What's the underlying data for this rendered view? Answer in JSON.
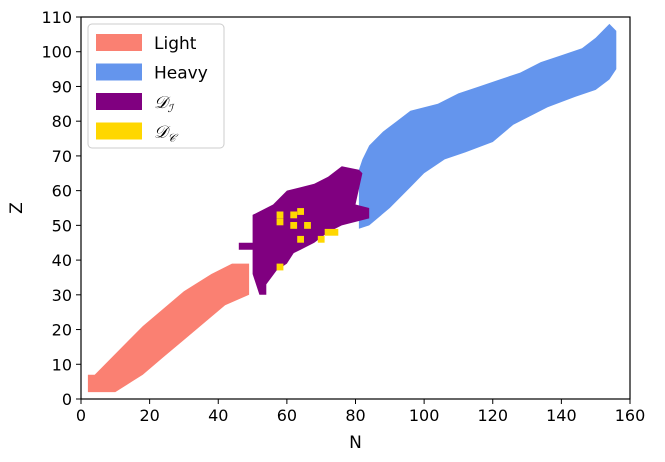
{
  "chart_data": {
    "type": "heatmap",
    "xlabel": "N",
    "ylabel": "Z",
    "xlim": [
      0,
      160
    ],
    "ylim": [
      0,
      110
    ],
    "xticks": [
      0,
      20,
      40,
      60,
      80,
      100,
      120,
      140,
      160
    ],
    "yticks": [
      0,
      10,
      20,
      30,
      40,
      50,
      60,
      70,
      80,
      90,
      100,
      110
    ],
    "grid": false,
    "legend_position": "top-left",
    "series": [
      {
        "name": "Light",
        "color": "#fa8072",
        "polygon": [
          [
            2,
            2
          ],
          [
            10,
            2
          ],
          [
            18,
            7
          ],
          [
            24,
            12
          ],
          [
            30,
            17
          ],
          [
            36,
            22
          ],
          [
            42,
            27
          ],
          [
            49,
            30
          ],
          [
            49,
            39
          ],
          [
            44,
            39
          ],
          [
            38,
            36
          ],
          [
            30,
            31
          ],
          [
            24,
            26
          ],
          [
            18,
            21
          ],
          [
            12,
            15
          ],
          [
            8,
            11
          ],
          [
            6,
            9
          ],
          [
            4,
            7
          ],
          [
            2,
            7
          ]
        ]
      },
      {
        "name": "Heavy",
        "color": "#6495ed",
        "polygon": [
          [
            81,
            49
          ],
          [
            84,
            50
          ],
          [
            90,
            55
          ],
          [
            96,
            61
          ],
          [
            100,
            65
          ],
          [
            106,
            69
          ],
          [
            112,
            71
          ],
          [
            120,
            74
          ],
          [
            126,
            79
          ],
          [
            132,
            82
          ],
          [
            136,
            84
          ],
          [
            144,
            87
          ],
          [
            150,
            89
          ],
          [
            154,
            92
          ],
          [
            156,
            95
          ],
          [
            156,
            106
          ],
          [
            154,
            108
          ],
          [
            150,
            104
          ],
          [
            146,
            101
          ],
          [
            140,
            99
          ],
          [
            134,
            97
          ],
          [
            128,
            94
          ],
          [
            122,
            92
          ],
          [
            116,
            90
          ],
          [
            110,
            88
          ],
          [
            104,
            85
          ],
          [
            96,
            83
          ],
          [
            92,
            80
          ],
          [
            88,
            77
          ],
          [
            84,
            73
          ],
          [
            82,
            69
          ],
          [
            81,
            66
          ]
        ]
      },
      {
        "name": "𝒟ℐ",
        "label_main": "𝒟",
        "label_sub": "ℐ",
        "color": "#800080",
        "polygon": [
          [
            46,
            43
          ],
          [
            50,
            43
          ],
          [
            50,
            36
          ],
          [
            52,
            30
          ],
          [
            54,
            30
          ],
          [
            54,
            33
          ],
          [
            57,
            37
          ],
          [
            60,
            39
          ],
          [
            62,
            42
          ],
          [
            64,
            43
          ],
          [
            68,
            45
          ],
          [
            72,
            48
          ],
          [
            76,
            50
          ],
          [
            80,
            51
          ],
          [
            84,
            52
          ],
          [
            84,
            55
          ],
          [
            80,
            56
          ],
          [
            82,
            65
          ],
          [
            81,
            66
          ],
          [
            76,
            67
          ],
          [
            72,
            64
          ],
          [
            68,
            62
          ],
          [
            64,
            61
          ],
          [
            60,
            60
          ],
          [
            56,
            56
          ],
          [
            50,
            53
          ],
          [
            50,
            50
          ],
          [
            50,
            45
          ],
          [
            46,
            45
          ]
        ]
      },
      {
        "name": "𝒟𝒞",
        "label_main": "𝒟",
        "label_sub": "𝒞",
        "color": "#ffd700",
        "points": [
          [
            58,
            53
          ],
          [
            58,
            51
          ],
          [
            62,
            53
          ],
          [
            64,
            54
          ],
          [
            62,
            50
          ],
          [
            66,
            50
          ],
          [
            58,
            38
          ],
          [
            64,
            46
          ],
          [
            70,
            46
          ],
          [
            72,
            48
          ],
          [
            74,
            48
          ]
        ]
      }
    ]
  }
}
